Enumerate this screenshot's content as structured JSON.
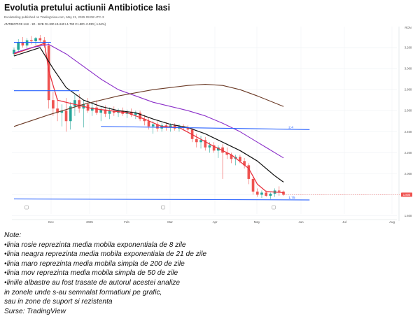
{
  "title": "Evolutia pretului actiunii Antibiotice Iasi",
  "subtitle": "Evoluteding published on TradingView.com, May 21, 2025 09:08 UTC-3",
  "symbol_line": "ANTIBIOTICE IASI · 1D · BVB  O1.830  H1.840  L1.790  C1.800  -0.030 (-1.64%)",
  "notes": {
    "heading": "Note:",
    "lines": [
      "•linia rosie reprezinta media mobila exponentiala de 8 zile",
      "•linia neagra reprezinta media mobila exponentiala de 21 de zile",
      "•linia maro reprezinta media mobila simpla de 200 de zile",
      "•linia mov reprezinta media mobila simpla de 50 de zile",
      "•liniile albastre au fost trasate de autorul acestei analize",
      "in zonele unde s-au semnalat formatiuni pe grafic,",
      "sau in zone de suport si rezistenta",
      "Surse: TradingView"
    ]
  },
  "colors": {
    "ema8": "#e8333f",
    "ema21": "#111111",
    "sma200": "#6b3a26",
    "sma50": "#8b2fc9",
    "hlines": "#2962ff",
    "up_candle": "#26a69a",
    "down_candle": "#ef5350",
    "price_tag": "#ef5350"
  },
  "chart_data": {
    "type": "line",
    "title": "Evolutia pretului actiunii Antibiotice Iasi",
    "y_currency": "RON",
    "ylim": [
      1.55,
      3.4
    ],
    "y_ticks": [
      1.6,
      1.8,
      2.0,
      2.2,
      2.4,
      2.6,
      2.8,
      3.0,
      3.2
    ],
    "y_tick_labels": [
      "1.600",
      "1.800",
      "2.000",
      "2.200",
      "2.400",
      "2.600",
      "2.800",
      "3.000",
      "3.200"
    ],
    "x_tick_labels": [
      "Dec",
      "2025",
      "Feb",
      "Mar",
      "Apr",
      "May",
      "Jun",
      "Jul",
      "Aug"
    ],
    "last_price_label": "1.800",
    "candles": [
      {
        "o": 3.14,
        "h": 3.2,
        "l": 3.12,
        "c": 3.18
      },
      {
        "o": 3.18,
        "h": 3.28,
        "l": 3.15,
        "c": 3.25
      },
      {
        "o": 3.25,
        "h": 3.3,
        "l": 3.2,
        "c": 3.22
      },
      {
        "o": 3.22,
        "h": 3.29,
        "l": 3.18,
        "c": 3.27
      },
      {
        "o": 3.27,
        "h": 3.31,
        "l": 3.23,
        "c": 3.26
      },
      {
        "o": 3.26,
        "h": 3.3,
        "l": 3.22,
        "c": 3.29
      },
      {
        "o": 3.29,
        "h": 3.32,
        "l": 3.25,
        "c": 3.27
      },
      {
        "o": 3.27,
        "h": 3.3,
        "l": 3.2,
        "c": 3.22
      },
      {
        "o": 3.22,
        "h": 3.24,
        "l": 2.62,
        "c": 2.7
      },
      {
        "o": 2.7,
        "h": 2.78,
        "l": 2.55,
        "c": 2.62
      },
      {
        "o": 2.62,
        "h": 2.72,
        "l": 2.5,
        "c": 2.58
      },
      {
        "o": 2.58,
        "h": 2.66,
        "l": 2.45,
        "c": 2.6
      },
      {
        "o": 2.6,
        "h": 2.72,
        "l": 2.4,
        "c": 2.5
      },
      {
        "o": 2.5,
        "h": 2.68,
        "l": 2.42,
        "c": 2.64
      },
      {
        "o": 2.64,
        "h": 2.75,
        "l": 2.55,
        "c": 2.7
      },
      {
        "o": 2.7,
        "h": 2.76,
        "l": 2.58,
        "c": 2.62
      },
      {
        "o": 2.62,
        "h": 2.7,
        "l": 2.44,
        "c": 2.66
      },
      {
        "o": 2.66,
        "h": 2.72,
        "l": 2.58,
        "c": 2.6
      },
      {
        "o": 2.6,
        "h": 2.68,
        "l": 2.55,
        "c": 2.63
      },
      {
        "o": 2.63,
        "h": 2.7,
        "l": 2.56,
        "c": 2.58
      },
      {
        "o": 2.58,
        "h": 2.64,
        "l": 2.5,
        "c": 2.61
      },
      {
        "o": 2.61,
        "h": 2.65,
        "l": 2.54,
        "c": 2.57
      },
      {
        "o": 2.57,
        "h": 2.63,
        "l": 2.52,
        "c": 2.6
      },
      {
        "o": 2.6,
        "h": 2.64,
        "l": 2.55,
        "c": 2.58
      },
      {
        "o": 2.58,
        "h": 2.62,
        "l": 2.54,
        "c": 2.6
      },
      {
        "o": 2.6,
        "h": 2.63,
        "l": 2.55,
        "c": 2.57
      },
      {
        "o": 2.57,
        "h": 2.61,
        "l": 2.53,
        "c": 2.59
      },
      {
        "o": 2.59,
        "h": 2.62,
        "l": 2.54,
        "c": 2.56
      },
      {
        "o": 2.56,
        "h": 2.6,
        "l": 2.52,
        "c": 2.58
      },
      {
        "o": 2.58,
        "h": 2.6,
        "l": 2.5,
        "c": 2.52
      },
      {
        "o": 2.52,
        "h": 2.56,
        "l": 2.46,
        "c": 2.5
      },
      {
        "o": 2.5,
        "h": 2.54,
        "l": 2.42,
        "c": 2.45
      },
      {
        "o": 2.45,
        "h": 2.5,
        "l": 2.38,
        "c": 2.47
      },
      {
        "o": 2.47,
        "h": 2.5,
        "l": 2.4,
        "c": 2.43
      },
      {
        "o": 2.43,
        "h": 2.48,
        "l": 2.4,
        "c": 2.46
      },
      {
        "o": 2.46,
        "h": 2.49,
        "l": 2.41,
        "c": 2.44
      },
      {
        "o": 2.44,
        "h": 2.48,
        "l": 2.4,
        "c": 2.46
      },
      {
        "o": 2.46,
        "h": 2.48,
        "l": 2.41,
        "c": 2.43
      },
      {
        "o": 2.43,
        "h": 2.47,
        "l": 2.4,
        "c": 2.45
      },
      {
        "o": 2.45,
        "h": 2.47,
        "l": 2.41,
        "c": 2.44
      },
      {
        "o": 2.44,
        "h": 2.46,
        "l": 2.4,
        "c": 2.42
      },
      {
        "o": 2.42,
        "h": 2.44,
        "l": 2.3,
        "c": 2.33
      },
      {
        "o": 2.33,
        "h": 2.38,
        "l": 2.25,
        "c": 2.3
      },
      {
        "o": 2.3,
        "h": 2.36,
        "l": 2.24,
        "c": 2.32
      },
      {
        "o": 2.32,
        "h": 2.35,
        "l": 2.22,
        "c": 2.25
      },
      {
        "o": 2.25,
        "h": 2.3,
        "l": 2.2,
        "c": 2.27
      },
      {
        "o": 2.27,
        "h": 2.3,
        "l": 2.2,
        "c": 2.22
      },
      {
        "o": 2.22,
        "h": 2.27,
        "l": 2.15,
        "c": 2.25
      },
      {
        "o": 2.25,
        "h": 2.28,
        "l": 1.95,
        "c": 2.2
      },
      {
        "o": 2.2,
        "h": 2.25,
        "l": 2.14,
        "c": 2.18
      },
      {
        "o": 2.18,
        "h": 2.2,
        "l": 2.1,
        "c": 2.14
      },
      {
        "o": 2.14,
        "h": 2.18,
        "l": 2.08,
        "c": 2.16
      },
      {
        "o": 2.16,
        "h": 2.18,
        "l": 2.1,
        "c": 2.12
      },
      {
        "o": 2.12,
        "h": 2.15,
        "l": 2.05,
        "c": 2.08
      },
      {
        "o": 2.08,
        "h": 2.1,
        "l": 1.9,
        "c": 1.95
      },
      {
        "o": 1.95,
        "h": 1.98,
        "l": 1.8,
        "c": 1.83
      },
      {
        "o": 1.83,
        "h": 1.86,
        "l": 1.78,
        "c": 1.8
      },
      {
        "o": 1.8,
        "h": 1.84,
        "l": 1.77,
        "c": 1.82
      },
      {
        "o": 1.82,
        "h": 1.84,
        "l": 1.78,
        "c": 1.79
      },
      {
        "o": 1.79,
        "h": 1.82,
        "l": 1.76,
        "c": 1.81
      },
      {
        "o": 1.81,
        "h": 1.86,
        "l": 1.78,
        "c": 1.84
      },
      {
        "o": 1.84,
        "h": 1.88,
        "l": 1.79,
        "c": 1.83
      },
      {
        "o": 1.83,
        "h": 1.84,
        "l": 1.79,
        "c": 1.8
      }
    ],
    "series": [
      {
        "name": "",
        "color_key": "ema8",
        "x": [
          0,
          7,
          8,
          10,
          14,
          18,
          22,
          26,
          30,
          34,
          38,
          42,
          46,
          50,
          54,
          56,
          58,
          62
        ],
        "values": [
          3.14,
          3.24,
          2.98,
          2.7,
          2.66,
          2.62,
          2.6,
          2.58,
          2.52,
          2.45,
          2.44,
          2.35,
          2.26,
          2.18,
          2.05,
          1.9,
          1.83,
          1.82
        ]
      },
      {
        "name": "",
        "color_key": "ema21",
        "x": [
          0,
          6,
          9,
          12,
          16,
          20,
          24,
          28,
          32,
          36,
          40,
          44,
          48,
          52,
          56,
          60,
          62
        ],
        "values": [
          3.12,
          3.2,
          3.0,
          2.82,
          2.7,
          2.64,
          2.6,
          2.58,
          2.52,
          2.47,
          2.44,
          2.38,
          2.3,
          2.22,
          2.12,
          1.98,
          1.92
        ]
      },
      {
        "name": "",
        "color_key": "sma50",
        "x": [
          0,
          4,
          8,
          12,
          16,
          20,
          24,
          28,
          32,
          36,
          40,
          44,
          48,
          52,
          56,
          62
        ],
        "values": [
          3.15,
          3.2,
          3.23,
          3.14,
          3.02,
          2.9,
          2.8,
          2.74,
          2.68,
          2.64,
          2.6,
          2.55,
          2.48,
          2.4,
          2.3,
          2.15
        ]
      },
      {
        "name": "",
        "color_key": "sma200",
        "x": [
          0,
          8,
          16,
          24,
          32,
          40,
          44,
          48,
          52,
          56,
          62
        ],
        "values": [
          2.45,
          2.56,
          2.66,
          2.74,
          2.8,
          2.84,
          2.85,
          2.84,
          2.8,
          2.74,
          2.64
        ]
      }
    ],
    "levels": [
      {
        "label": "",
        "from": [
          0,
          3.25
        ],
        "to": [
          8.5,
          3.25
        ]
      },
      {
        "label": "",
        "from": [
          0,
          2.79
        ],
        "to": [
          15,
          2.79
        ]
      },
      {
        "label": "2.4",
        "from": [
          20,
          2.45
        ],
        "to": [
          68,
          2.42
        ]
      },
      {
        "label": "1.75",
        "from": [
          0,
          1.76
        ],
        "to": [
          68,
          1.75
        ]
      }
    ]
  }
}
